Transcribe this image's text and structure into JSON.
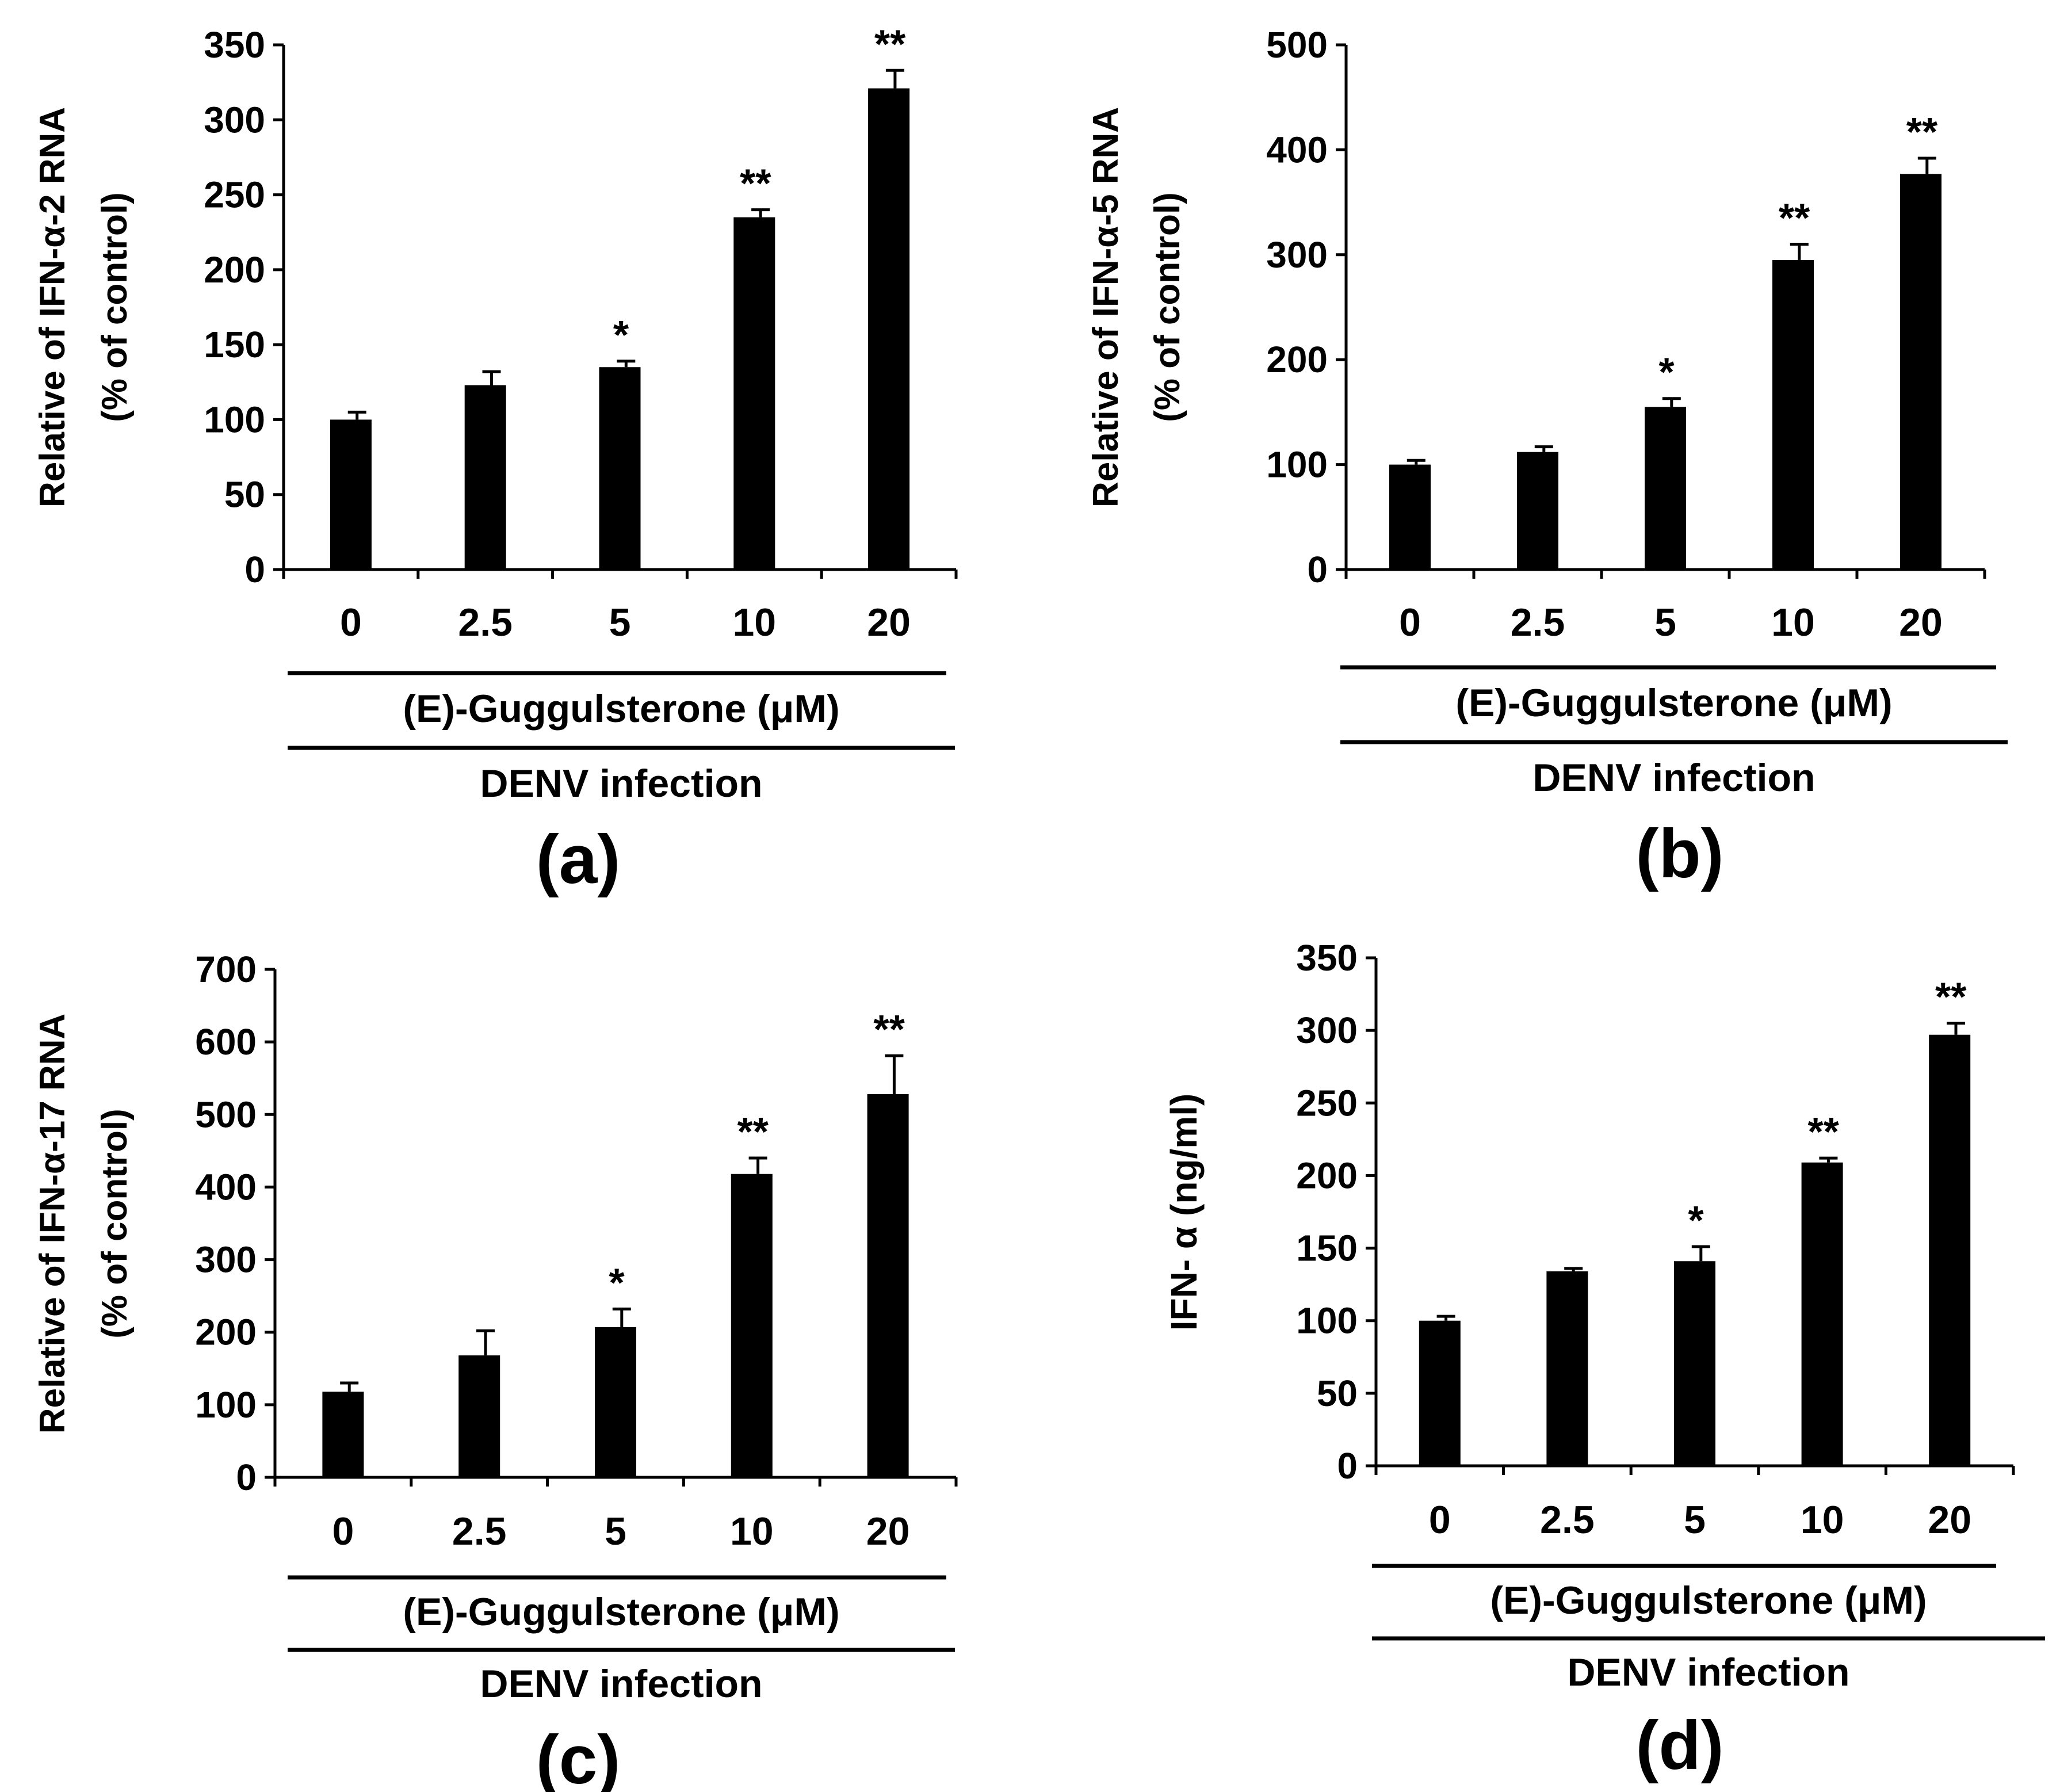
{
  "figure": {
    "panels": [
      "a",
      "b",
      "c",
      "d"
    ]
  },
  "chart_data": [
    {
      "panel": "(a)",
      "type": "bar",
      "categories": [
        "0",
        "2.5",
        "5",
        "10",
        "20"
      ],
      "values": [
        100,
        123,
        135,
        235,
        321
      ],
      "errors": [
        5,
        9,
        4,
        5,
        12
      ],
      "significance": [
        "",
        "",
        "*",
        "**",
        "**"
      ],
      "ylabel": [
        "Relative of IFN-α-2 RNA",
        "(% of control)"
      ],
      "ylim": [
        0,
        350
      ],
      "yticks": [
        0,
        50,
        100,
        150,
        200,
        250,
        300,
        350
      ],
      "xlabel": "(E)-Guggulsterone (μM)",
      "condition": "DENV infection",
      "grid": false,
      "color": "#000000"
    },
    {
      "panel": "(b)",
      "type": "bar",
      "categories": [
        "0",
        "2.5",
        "5",
        "10",
        "20"
      ],
      "values": [
        100,
        112,
        155,
        295,
        377
      ],
      "errors": [
        4,
        5,
        8,
        15,
        15
      ],
      "significance": [
        "",
        "",
        "*",
        "**",
        "**"
      ],
      "ylabel": [
        "Relative of IFN-α-5 RNA",
        "(% of control)"
      ],
      "ylim": [
        0,
        500
      ],
      "yticks": [
        0,
        100,
        200,
        300,
        400,
        500
      ],
      "xlabel": "(E)-Guggulsterone (μM)",
      "condition": "DENV infection",
      "grid": false,
      "color": "#000000"
    },
    {
      "panel": "(c)",
      "type": "bar",
      "categories": [
        "0",
        "2.5",
        "5",
        "10",
        "20"
      ],
      "values": [
        118,
        168,
        207,
        418,
        528
      ],
      "errors": [
        12,
        34,
        25,
        22,
        53
      ],
      "significance": [
        "",
        "",
        "*",
        "**",
        "**"
      ],
      "ylabel": [
        "Relative of IFN-α-17 RNA",
        "(% of control)"
      ],
      "ylim": [
        0,
        700
      ],
      "yticks": [
        0,
        100,
        200,
        300,
        400,
        500,
        600,
        700
      ],
      "xlabel": "(E)-Guggulsterone (μM)",
      "condition": "DENV infection",
      "grid": false,
      "color": "#000000"
    },
    {
      "panel": "(d)",
      "type": "bar",
      "categories": [
        "0",
        "2.5",
        "5",
        "10",
        "20"
      ],
      "values": [
        100,
        134,
        141,
        209,
        297
      ],
      "errors": [
        3,
        2,
        10,
        3,
        8
      ],
      "significance": [
        "",
        "",
        "*",
        "**",
        "**"
      ],
      "ylabel": [
        "IFN- α (ng/ml)"
      ],
      "ylim": [
        0,
        350
      ],
      "yticks": [
        0,
        50,
        100,
        150,
        200,
        250,
        300,
        350
      ],
      "xlabel": "(E)-Guggulsterone (μM)",
      "condition": "DENV infection",
      "grid": false,
      "color": "#000000"
    }
  ]
}
